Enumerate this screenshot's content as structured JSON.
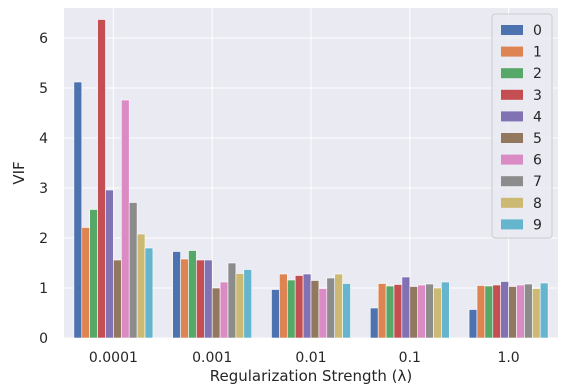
{
  "chart_data": {
    "type": "bar",
    "title": "",
    "xlabel": "Regularization Strength (λ)",
    "ylabel": "VIF",
    "categories": [
      "0.0001",
      "0.001",
      "0.01",
      "0.1",
      "1.0"
    ],
    "ylim": [
      0,
      6.6
    ],
    "yticks": [
      0,
      1,
      2,
      3,
      4,
      5,
      6
    ],
    "grid": true,
    "legend_position": "top-right",
    "series": [
      {
        "name": "0",
        "color": "#4c72b0",
        "values": [
          5.12,
          1.73,
          0.97,
          0.6,
          0.57
        ]
      },
      {
        "name": "1",
        "color": "#dd8452",
        "values": [
          2.21,
          1.58,
          1.28,
          1.09,
          1.05
        ]
      },
      {
        "name": "2",
        "color": "#55a868",
        "values": [
          2.57,
          1.75,
          1.16,
          1.04,
          1.04
        ]
      },
      {
        "name": "3",
        "color": "#c44e52",
        "values": [
          6.37,
          1.56,
          1.25,
          1.07,
          1.06
        ]
      },
      {
        "name": "4",
        "color": "#8172b3",
        "values": [
          2.96,
          1.56,
          1.28,
          1.22,
          1.13
        ]
      },
      {
        "name": "5",
        "color": "#937860",
        "values": [
          1.56,
          1.0,
          1.15,
          1.03,
          1.03
        ]
      },
      {
        "name": "6",
        "color": "#da8bc3",
        "values": [
          4.76,
          1.12,
          0.99,
          1.06,
          1.06
        ]
      },
      {
        "name": "7",
        "color": "#8c8c8c",
        "values": [
          2.71,
          1.5,
          1.2,
          1.08,
          1.08
        ]
      },
      {
        "name": "8",
        "color": "#ccb974",
        "values": [
          2.08,
          1.29,
          1.28,
          1.0,
          0.99
        ]
      },
      {
        "name": "9",
        "color": "#64b5cd",
        "values": [
          1.8,
          1.37,
          1.09,
          1.12,
          1.1
        ]
      }
    ]
  }
}
